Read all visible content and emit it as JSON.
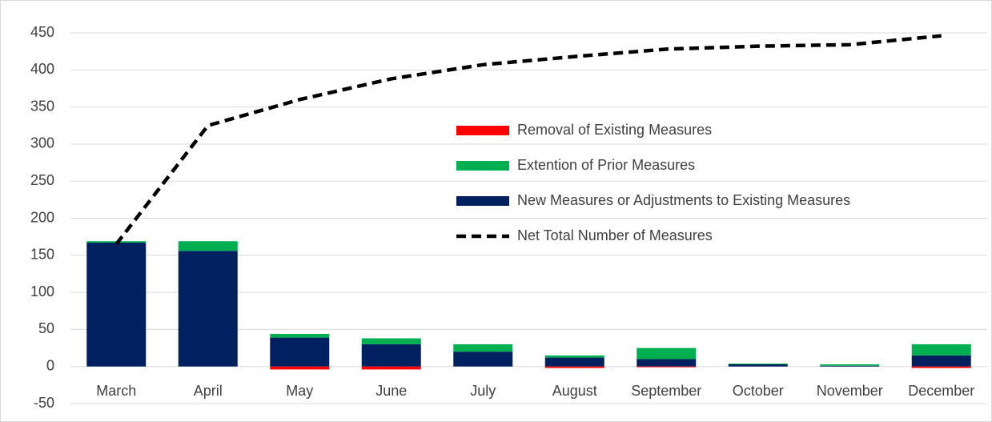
{
  "chart_data": {
    "type": "stacked_bar_line",
    "categories": [
      "March",
      "April",
      "May",
      "June",
      "July",
      "August",
      "September",
      "October",
      "November",
      "December"
    ],
    "series": [
      {
        "name": "Removal of Existing Measures",
        "color": "#ff0000",
        "kind": "bar",
        "values": [
          0,
          0,
          -4,
          -4,
          0,
          -2,
          -1,
          0,
          0,
          -2
        ]
      },
      {
        "name": "Extention of Prior Measures",
        "color": "#00b050",
        "kind": "bar",
        "values": [
          2,
          13,
          5,
          8,
          10,
          3,
          15,
          1,
          2,
          15
        ]
      },
      {
        "name": "New  Measures or Adjustments to Existing Measures",
        "color": "#002060",
        "kind": "bar",
        "values": [
          167,
          156,
          39,
          30,
          20,
          12,
          10,
          3,
          1,
          15
        ]
      },
      {
        "name": "Net Total Number of Measures",
        "color": "#000000",
        "kind": "line",
        "dashed": true,
        "values": [
          165,
          325,
          360,
          388,
          407,
          418,
          428,
          432,
          434,
          446
        ]
      }
    ],
    "ylim": [
      -50,
      450
    ],
    "yticks": [
      -50,
      0,
      50,
      100,
      150,
      200,
      250,
      300,
      350,
      400,
      450
    ],
    "grid": true,
    "legend": "inside"
  }
}
